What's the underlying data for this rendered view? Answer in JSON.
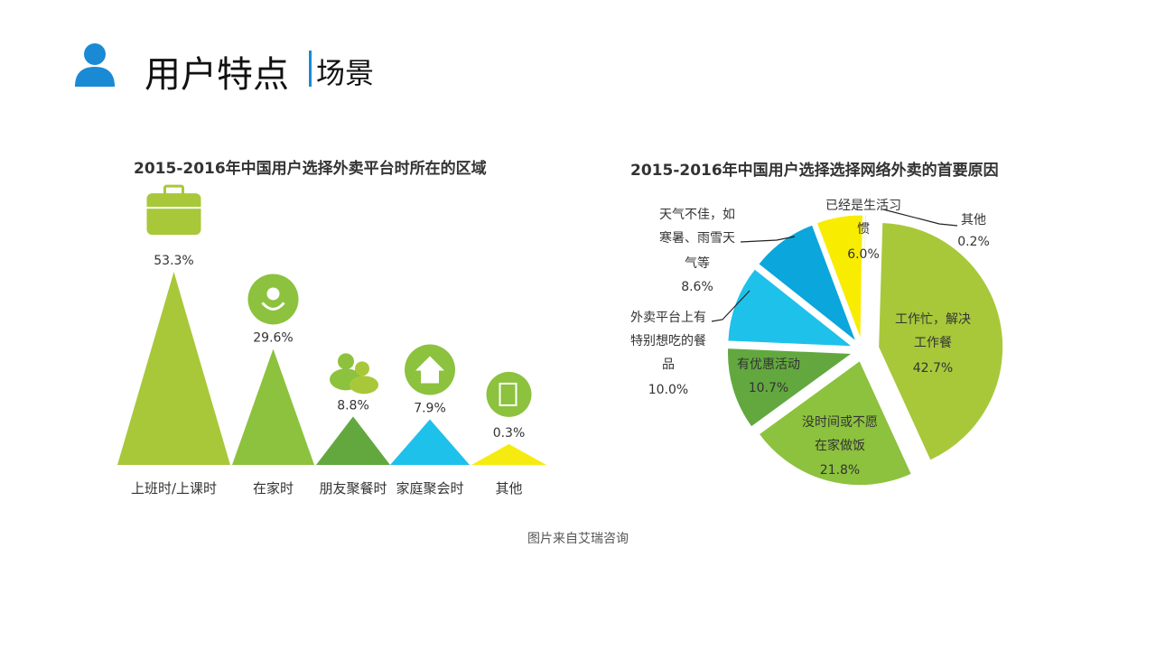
{
  "header": {
    "title": "用户特点",
    "subtitle": "场景",
    "icon": "user-icon",
    "accent": "#1a8ad4"
  },
  "source": "图片来自艾瑞咨询",
  "chart_data": [
    {
      "type": "bar",
      "style": "triangle",
      "title": "2015-2016年中国用户选择外卖平台时所在的区域",
      "categories": [
        "上班时/上课时",
        "在家时",
        "朋友聚餐时",
        "家庭聚会时",
        "其他"
      ],
      "values": [
        53.3,
        29.6,
        8.8,
        7.9,
        0.3
      ],
      "labels": [
        "53.3%",
        "29.6%",
        "8.8%",
        "7.9%",
        "0.3%"
      ],
      "icons": [
        "briefcase-icon",
        "flower-icon",
        "people-icon",
        "home-icon",
        "notepad-icon"
      ],
      "colors": [
        "#a8c83a",
        "#8cc23e",
        "#62a83f",
        "#1ec1ea",
        "#f5eb10"
      ]
    },
    {
      "type": "pie",
      "title": "2015-2016年中国用户选择选择网络外卖的首要原因",
      "slices": [
        {
          "label": "其他",
          "value": 0.2,
          "text": "0.2%",
          "color": "#e9e98c"
        },
        {
          "label": "工作忙，解决工作餐",
          "value": 42.7,
          "text": "42.7%",
          "color": "#a8c83a"
        },
        {
          "label": "没时间或不愿在家做饭",
          "value": 21.8,
          "text": "21.8%",
          "color": "#8cc23e"
        },
        {
          "label": "有优惠活动",
          "value": 10.7,
          "text": "10.7%",
          "color": "#62a83f"
        },
        {
          "label": "外卖平台上有特别想吃的餐品",
          "value": 10.0,
          "text": "10.0%",
          "color": "#1ec1ea"
        },
        {
          "label": "天气不佳，如寒暑、雨雪天气等",
          "value": 8.6,
          "text": "8.6%",
          "color": "#0aa6dc"
        },
        {
          "label": "已经是生活习惯",
          "value": 6.0,
          "text": "6.0%",
          "color": "#f8ec00"
        }
      ]
    }
  ]
}
